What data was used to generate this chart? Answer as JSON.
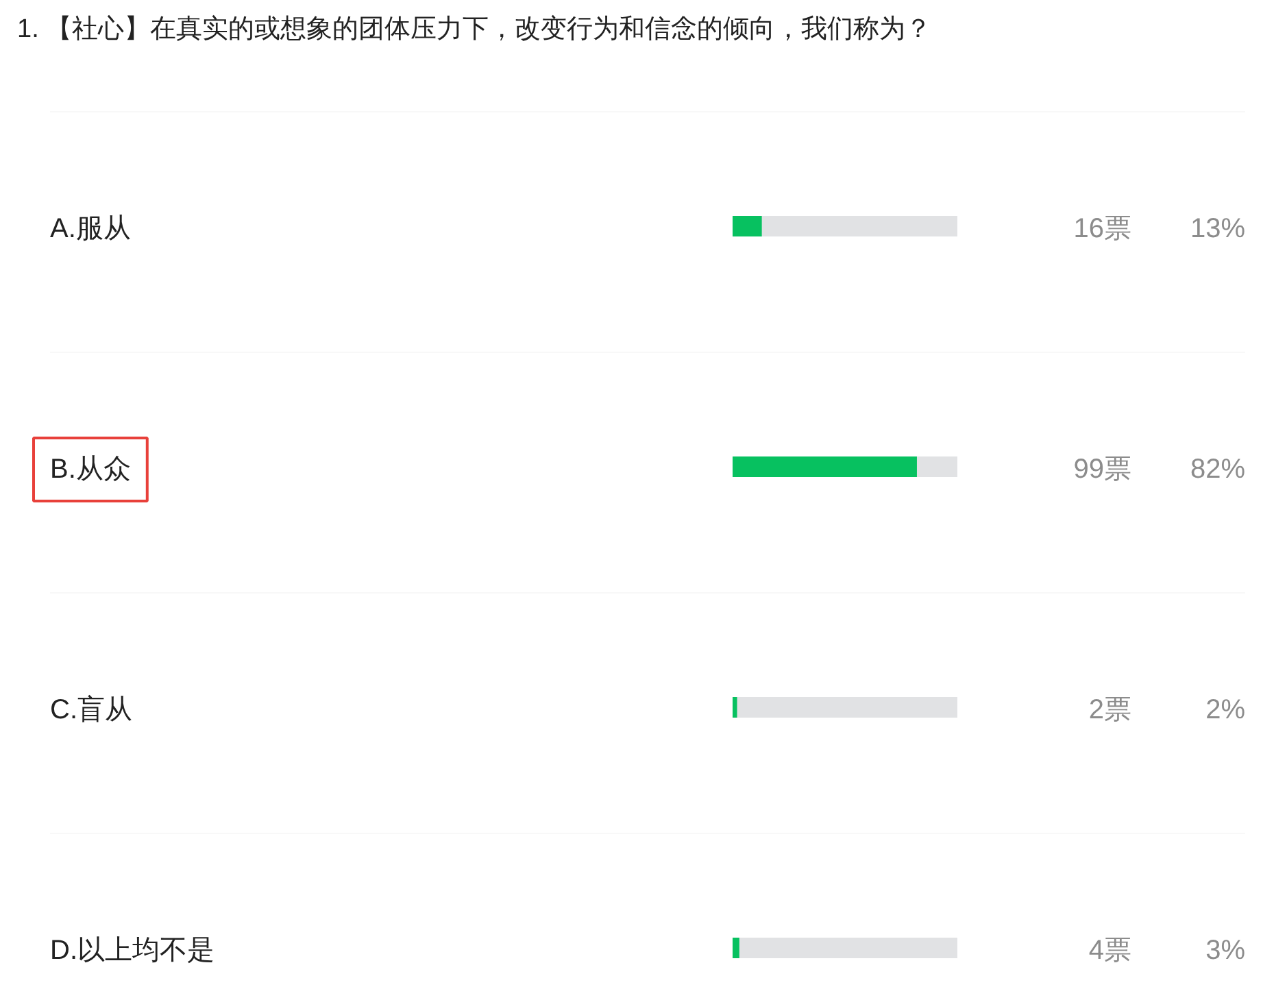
{
  "chart_data": {
    "type": "bar",
    "orientation": "horizontal",
    "title": "1. 【社心】在真实的或想象的团体压力下，改变行为和信念的倾向，我们称为？",
    "categories": [
      "A.服从",
      "B.从众",
      "C.盲从",
      "D.以上均不是"
    ],
    "values": [
      13,
      82,
      2,
      3
    ],
    "color": "#07c160",
    "value_labels": [
      "13%",
      "82%",
      "2%",
      "3%"
    ],
    "annotations": [
      "16票",
      "99票",
      "2票",
      "4票"
    ],
    "tick_labels": "y"
  }
}
